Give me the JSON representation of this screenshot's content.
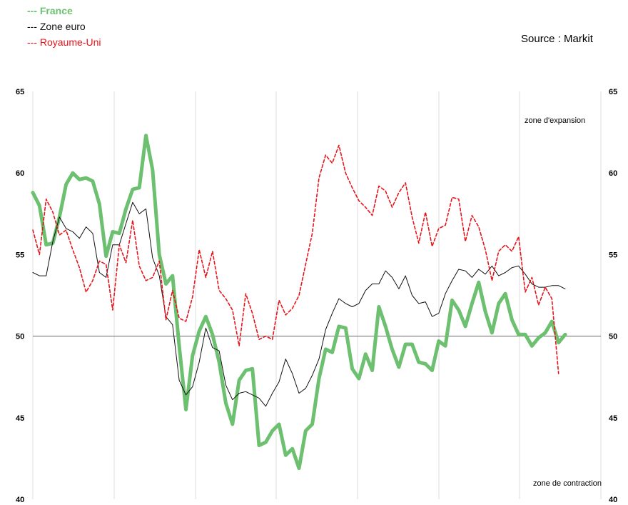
{
  "legend": {
    "france": "--- France",
    "euro": "--- Zone euro",
    "uk": "--- Royaume-Uni"
  },
  "source": "Source : Markit",
  "annotations": {
    "expansion": "zone d'expansion",
    "contraction": "zone de contraction"
  },
  "colors": {
    "france": "#6cc070",
    "euro": "#111111",
    "uk": "#e8141c",
    "grid": "#dddddd",
    "refline": "#666666"
  },
  "chart_data": {
    "type": "line",
    "ylim": [
      40,
      65
    ],
    "yticks": [
      40,
      45,
      50,
      55,
      60,
      65
    ],
    "reference_line": 50,
    "grid": "vertical",
    "legend_position": "top-left",
    "series": [
      {
        "name": "France",
        "values": [
          58.8,
          58.0,
          55.6,
          55.7,
          57.3,
          59.3,
          60.0,
          59.6,
          59.7,
          59.5,
          58.1,
          54.9,
          56.4,
          56.3,
          57.8,
          59.0,
          59.1,
          62.3,
          60.2,
          55.0,
          53.2,
          53.7,
          49.4,
          45.5,
          48.8,
          50.3,
          51.2,
          50.1,
          48.4,
          45.9,
          44.6,
          47.3,
          47.9,
          48.0,
          43.3,
          43.5,
          44.2,
          44.6,
          42.7,
          43.1,
          41.9,
          44.2,
          44.6,
          47.4,
          49.2,
          49.0,
          50.6,
          50.5,
          48.0,
          47.4,
          48.9,
          47.9,
          51.8,
          50.6,
          49.2,
          48.1,
          49.5,
          49.5,
          48.4,
          48.3,
          47.9,
          49.7,
          49.4,
          52.2,
          51.6,
          50.6,
          52.0,
          53.3,
          51.5,
          50.2,
          52.0,
          52.6,
          51.0,
          50.1,
          50.1,
          49.4,
          49.9,
          50.2,
          50.9,
          49.6,
          50.1
        ]
      },
      {
        "name": "Zone euro",
        "values": [
          53.9,
          53.7,
          53.7,
          55.8,
          57.3,
          56.6,
          56.4,
          56.0,
          56.7,
          56.3,
          53.9,
          53.6,
          55.6,
          55.6,
          56.9,
          58.2,
          57.5,
          57.8,
          54.8,
          53.7,
          51.2,
          50.7,
          47.3,
          46.4,
          46.9,
          48.4,
          50.5,
          49.3,
          49.1,
          47.0,
          46.1,
          46.5,
          46.6,
          46.4,
          46.2,
          45.7,
          46.5,
          47.2,
          48.6,
          47.7,
          46.5,
          46.8,
          47.6,
          48.6,
          50.4,
          51.4,
          52.3,
          52.0,
          51.8,
          52.0,
          52.8,
          53.2,
          53.2,
          54.0,
          53.6,
          52.9,
          53.7,
          52.5,
          52.0,
          52.1,
          51.2,
          51.4,
          52.6,
          53.4,
          54.1,
          54.0,
          53.6,
          54.1,
          53.8,
          54.3,
          53.7,
          53.9,
          54.2,
          54.3,
          53.8,
          53.2,
          53.0,
          53.0,
          53.1,
          53.1,
          52.9
        ]
      },
      {
        "name": "Royaume-Uni",
        "values": [
          56.5,
          55.0,
          58.4,
          57.6,
          56.2,
          56.5,
          55.3,
          54.2,
          52.7,
          53.4,
          54.6,
          54.4,
          51.6,
          55.6,
          54.5,
          57.1,
          54.3,
          53.4,
          53.6,
          54.6,
          51.0,
          52.8,
          51.1,
          50.9,
          52.4,
          55.3,
          53.6,
          55.2,
          52.8,
          52.3,
          51.6,
          49.4,
          52.6,
          51.4,
          49.8,
          50.0,
          49.8,
          52.2,
          51.3,
          51.7,
          52.5,
          54.4,
          56.3,
          59.7,
          61.1,
          60.6,
          61.7,
          60.0,
          59.1,
          58.3,
          57.9,
          57.4,
          59.2,
          58.9,
          57.9,
          58.8,
          59.4,
          57.3,
          55.7,
          57.6,
          55.5,
          56.6,
          56.8,
          58.5,
          58.4,
          55.8,
          57.4,
          56.7,
          55.3,
          53.4,
          55.2,
          55.6,
          55.2,
          56.1,
          52.7,
          53.6,
          51.9,
          53.0,
          52.3,
          47.7
        ]
      }
    ]
  }
}
